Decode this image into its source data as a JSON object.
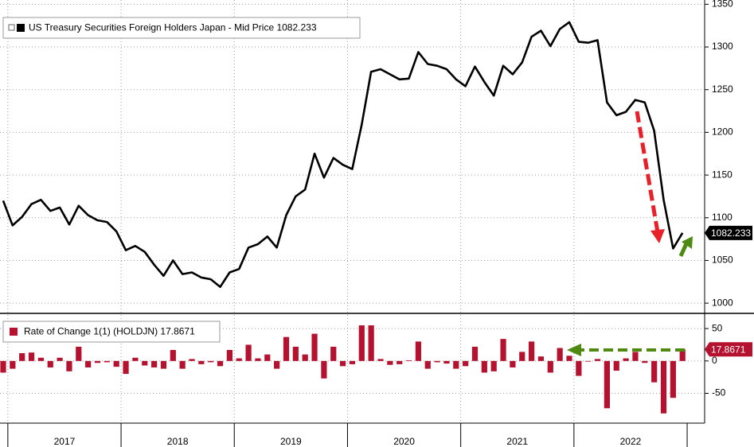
{
  "chart_data": [
    {
      "type": "line",
      "title": "US Treasury Securities Foreign Holders Japan - Mid Price 1082.233",
      "categories": [
        null,
        null,
        null,
        null,
        null,
        null,
        null,
        null,
        null,
        null,
        null,
        null,
        null,
        null,
        null,
        null,
        null,
        null,
        null,
        null,
        null,
        null,
        null,
        null,
        null,
        null,
        null,
        null,
        null,
        null,
        null,
        null,
        null,
        null,
        null,
        null,
        null,
        null,
        null,
        null,
        null,
        null,
        null,
        null,
        null,
        null,
        null,
        null,
        null,
        null,
        null,
        null,
        null,
        null,
        null,
        null,
        null,
        null,
        null,
        null,
        null,
        null,
        null,
        null,
        null,
        null,
        null,
        null,
        null,
        null,
        null,
        null,
        null
      ],
      "values": [
        1120,
        1091,
        1101,
        1116,
        1121,
        1108,
        1112,
        1092,
        1114,
        1103,
        1097,
        1095,
        1084,
        1062,
        1067,
        1060,
        1045,
        1032,
        1050,
        1034,
        1036,
        1030,
        1028,
        1019,
        1036,
        1040,
        1065,
        1069,
        1078,
        1065,
        1103,
        1125,
        1133,
        1175,
        1147,
        1170,
        1162,
        1157,
        1209,
        1271,
        1274,
        1268,
        1262,
        1263,
        1294,
        1280,
        1278,
        1274,
        1262,
        1254,
        1277,
        1259,
        1243,
        1278,
        1268,
        1282,
        1312,
        1319,
        1301,
        1321,
        1329,
        1306,
        1305,
        1308,
        1235,
        1220,
        1224,
        1238,
        1235,
        1202,
        1121,
        1064,
        1082.233
      ],
      "color": "#000000",
      "ylim": [
        988,
        1355
      ],
      "yticks": [
        1000,
        1050,
        1100,
        1150,
        1200,
        1250,
        1300,
        1350
      ],
      "grid": true,
      "x_labels": [
        "2017",
        "2018",
        "2019",
        "2020",
        "2021",
        "2022"
      ]
    },
    {
      "type": "bar",
      "title": "Rate of Change 1(1) (HOLDJN) 17.8671",
      "categories": [
        null,
        null,
        null,
        null,
        null,
        null,
        null,
        null,
        null,
        null,
        null,
        null,
        null,
        null,
        null,
        null,
        null,
        null,
        null,
        null,
        null,
        null,
        null,
        null,
        null,
        null,
        null,
        null,
        null,
        null,
        null,
        null,
        null,
        null,
        null,
        null,
        null,
        null,
        null,
        null,
        null,
        null,
        null,
        null,
        null,
        null,
        null,
        null,
        null,
        null,
        null,
        null,
        null,
        null,
        null,
        null,
        null,
        null,
        null,
        null,
        null,
        null,
        null,
        null,
        null,
        null,
        null,
        null,
        null,
        null,
        null,
        null,
        null
      ],
      "values": [
        -18,
        -12,
        12,
        13,
        5,
        -10,
        5,
        -16,
        22,
        -10,
        -3,
        -2,
        -9,
        -20,
        5,
        -7,
        -10,
        -12,
        17,
        -12,
        3,
        -5,
        -2,
        -8,
        17,
        4,
        25,
        4,
        10,
        -12,
        37,
        22,
        10,
        42,
        -27,
        22,
        -8,
        -5,
        55,
        55,
        3,
        -6,
        -5,
        1,
        30,
        -12,
        -2,
        -4,
        -12,
        -8,
        22,
        -18,
        -16,
        34,
        -10,
        14,
        30,
        7,
        -18,
        20,
        8,
        -23,
        -1,
        3,
        -73,
        -15,
        4,
        14,
        -3,
        -33,
        -81,
        -57,
        17.8671
      ],
      "color": "#b5122f",
      "ylim": [
        -96,
        71
      ],
      "yticks": [
        -50,
        0,
        50
      ],
      "grid": true
    }
  ]
}
